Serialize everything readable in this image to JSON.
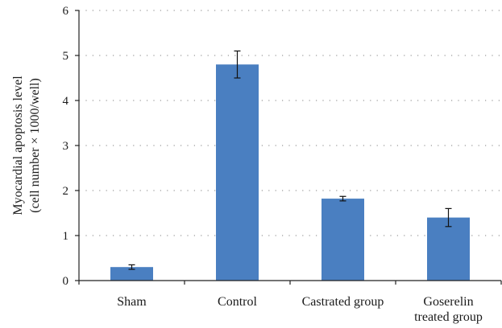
{
  "chart_data": {
    "type": "bar",
    "categories": [
      [
        "Sham"
      ],
      [
        "Control"
      ],
      [
        "Castrated group"
      ],
      [
        "Goserelin",
        "treated group"
      ]
    ],
    "values": [
      0.3,
      4.8,
      1.82,
      1.4
    ],
    "errors": [
      0.05,
      0.3,
      0.05,
      0.2
    ],
    "ylabel": [
      "Myocardial apoptosis level",
      "(cell number × 1000/well)"
    ],
    "ylim": [
      0,
      6
    ],
    "yticks": [
      0,
      1,
      2,
      3,
      4,
      5,
      6
    ],
    "grid": true,
    "bar_color": "#4a7fc1",
    "grid_color": "#9a9a9a",
    "axis_color": "#222222"
  }
}
